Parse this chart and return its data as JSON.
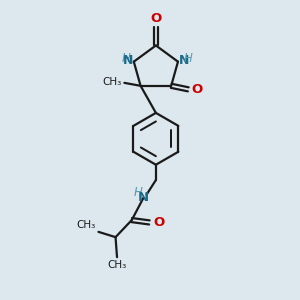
{
  "bg_color": "#dde8ee",
  "bond_color": "#1a1a1a",
  "n_color": "#1a6b8a",
  "o_color": "#cc0000",
  "h_color": "#5a9ab0",
  "line_width": 1.6,
  "font_size": 8.5,
  "fig_w": 3.0,
  "fig_h": 3.0,
  "dpi": 100,
  "xlim": [
    0,
    10
  ],
  "ylim": [
    0,
    10
  ]
}
